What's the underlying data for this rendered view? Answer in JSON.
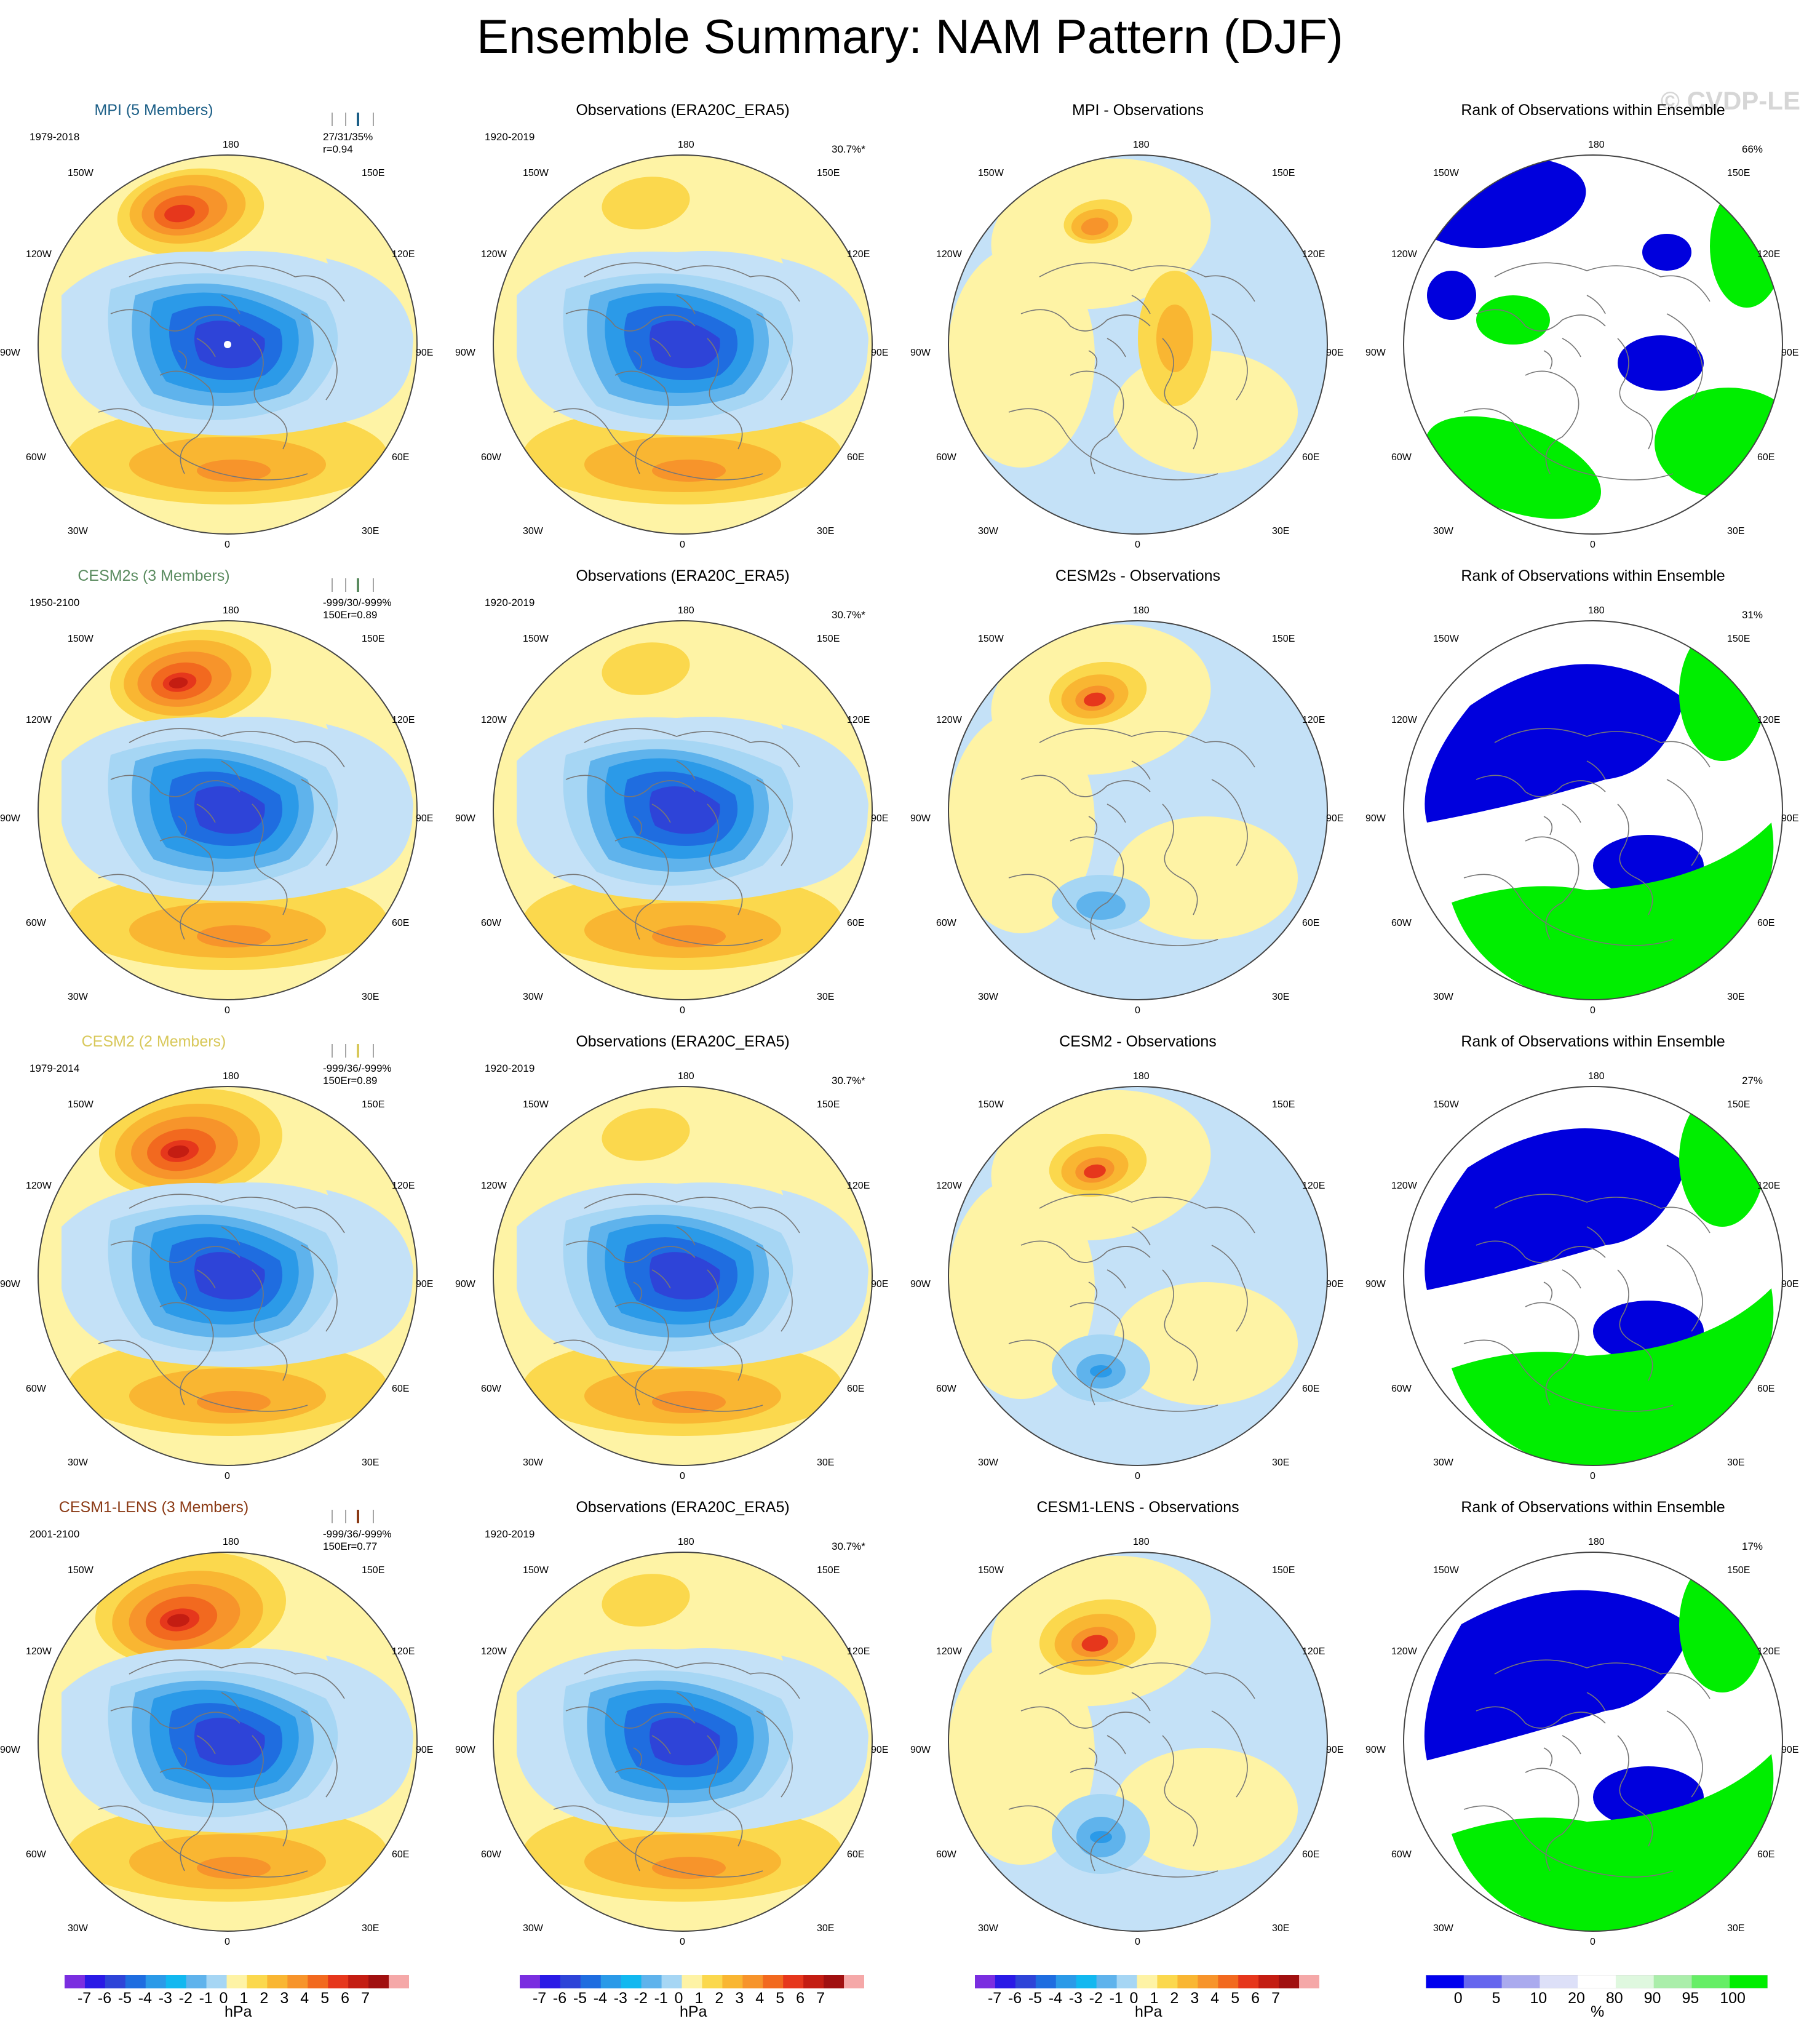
{
  "title": "Ensemble Summary: NAM Pattern (DJF)",
  "watermark": "© CVDP-LE",
  "lon_labels": {
    "top": "180",
    "bottom": "0",
    "upper_left": "150W",
    "upper_right": "150E",
    "mid_upper_left": "120W",
    "mid_upper_right": "120E",
    "left": "90W",
    "right": "90E",
    "mid_lower_left": "60W",
    "mid_lower_right": "60E",
    "lower_left": "30W",
    "lower_right": "30E"
  },
  "colors": {
    "blue_shades": [
      "#c4e1f7",
      "#a6d6f4",
      "#5fb3ec",
      "#2b9ae8",
      "#1f6de0",
      "#2e44d8",
      "#2030c6"
    ],
    "warm_shades": [
      "#fef3a5",
      "#fbd84d",
      "#f9b632",
      "#f7942b",
      "#f2691f",
      "#e6371c",
      "#c41d12"
    ],
    "rank_blue": "#0000dd",
    "rank_green": "#00ee00",
    "rank_white": "#ffffff",
    "model_colors": [
      "#1c5f87",
      "#5a8b5f",
      "#d8c85a",
      "#8b3a15"
    ]
  },
  "rows": [
    {
      "model": {
        "title": "MPI (5 Members)",
        "period": "1979-2018",
        "stat1": "27/31/35%",
        "stat2": "r=0.94"
      },
      "obs": {
        "title": "Observations (ERA20C_ERA5)",
        "period": "1920-2019",
        "pct": "30.7%*"
      },
      "diff": {
        "title": "MPI - Observations"
      },
      "rank": {
        "title": "Rank of Observations within Ensemble",
        "pct": "66%"
      }
    },
    {
      "model": {
        "title": "CESM2s (3 Members)",
        "period": "1950-2100",
        "stat1": "-999/30/-999%",
        "stat2": "150Er=0.89"
      },
      "obs": {
        "title": "Observations (ERA20C_ERA5)",
        "period": "1920-2019",
        "pct": "30.7%*"
      },
      "diff": {
        "title": "CESM2s - Observations"
      },
      "rank": {
        "title": "Rank of Observations within Ensemble",
        "pct": "31%"
      }
    },
    {
      "model": {
        "title": "CESM2 (2 Members)",
        "period": "1979-2014",
        "stat1": "-999/36/-999%",
        "stat2": "150Er=0.89"
      },
      "obs": {
        "title": "Observations (ERA20C_ERA5)",
        "period": "1920-2019",
        "pct": "30.7%*"
      },
      "diff": {
        "title": "CESM2 - Observations"
      },
      "rank": {
        "title": "Rank of Observations within Ensemble",
        "pct": "27%"
      }
    },
    {
      "model": {
        "title": "CESM1-LENS (3 Members)",
        "period": "2001-2100",
        "stat1": "-999/36/-999%",
        "stat2": "150Er=0.77"
      },
      "obs": {
        "title": "Observations (ERA20C_ERA5)",
        "period": "1920-2019",
        "pct": "30.7%*"
      },
      "diff": {
        "title": "CESM1-LENS - Observations"
      },
      "rank": {
        "title": "Rank of Observations within Ensemble",
        "pct": "17%"
      }
    }
  ],
  "colorbars": {
    "hpa_labels": [
      "-7",
      "-6",
      "-5",
      "-4",
      "-3",
      "-2",
      "-1",
      "0",
      "1",
      "2",
      "3",
      "4",
      "5",
      "6",
      "7"
    ],
    "hpa_unit": "hPa",
    "hpa_colors": [
      "#7a2ee0",
      "#2a1ae6",
      "#2e44d8",
      "#1f6de0",
      "#2b9ae8",
      "#12b8f0",
      "#5fb3ec",
      "#a6d6f4",
      "#fef3a5",
      "#fbd84d",
      "#f9b632",
      "#f7942b",
      "#f2691f",
      "#e6371c",
      "#c41d12",
      "#a11010",
      "#f5a8a8"
    ],
    "rank_labels": [
      "0",
      "5",
      "10",
      "20",
      "80",
      "90",
      "95",
      "100"
    ],
    "rank_unit": "%",
    "rank_colors": [
      "#0000ee",
      "#6666ee",
      "#aaaaee",
      "#dde0f8",
      "#ffffff",
      "#dff8df",
      "#aaeeaa",
      "#66ee66",
      "#00ee00"
    ]
  }
}
